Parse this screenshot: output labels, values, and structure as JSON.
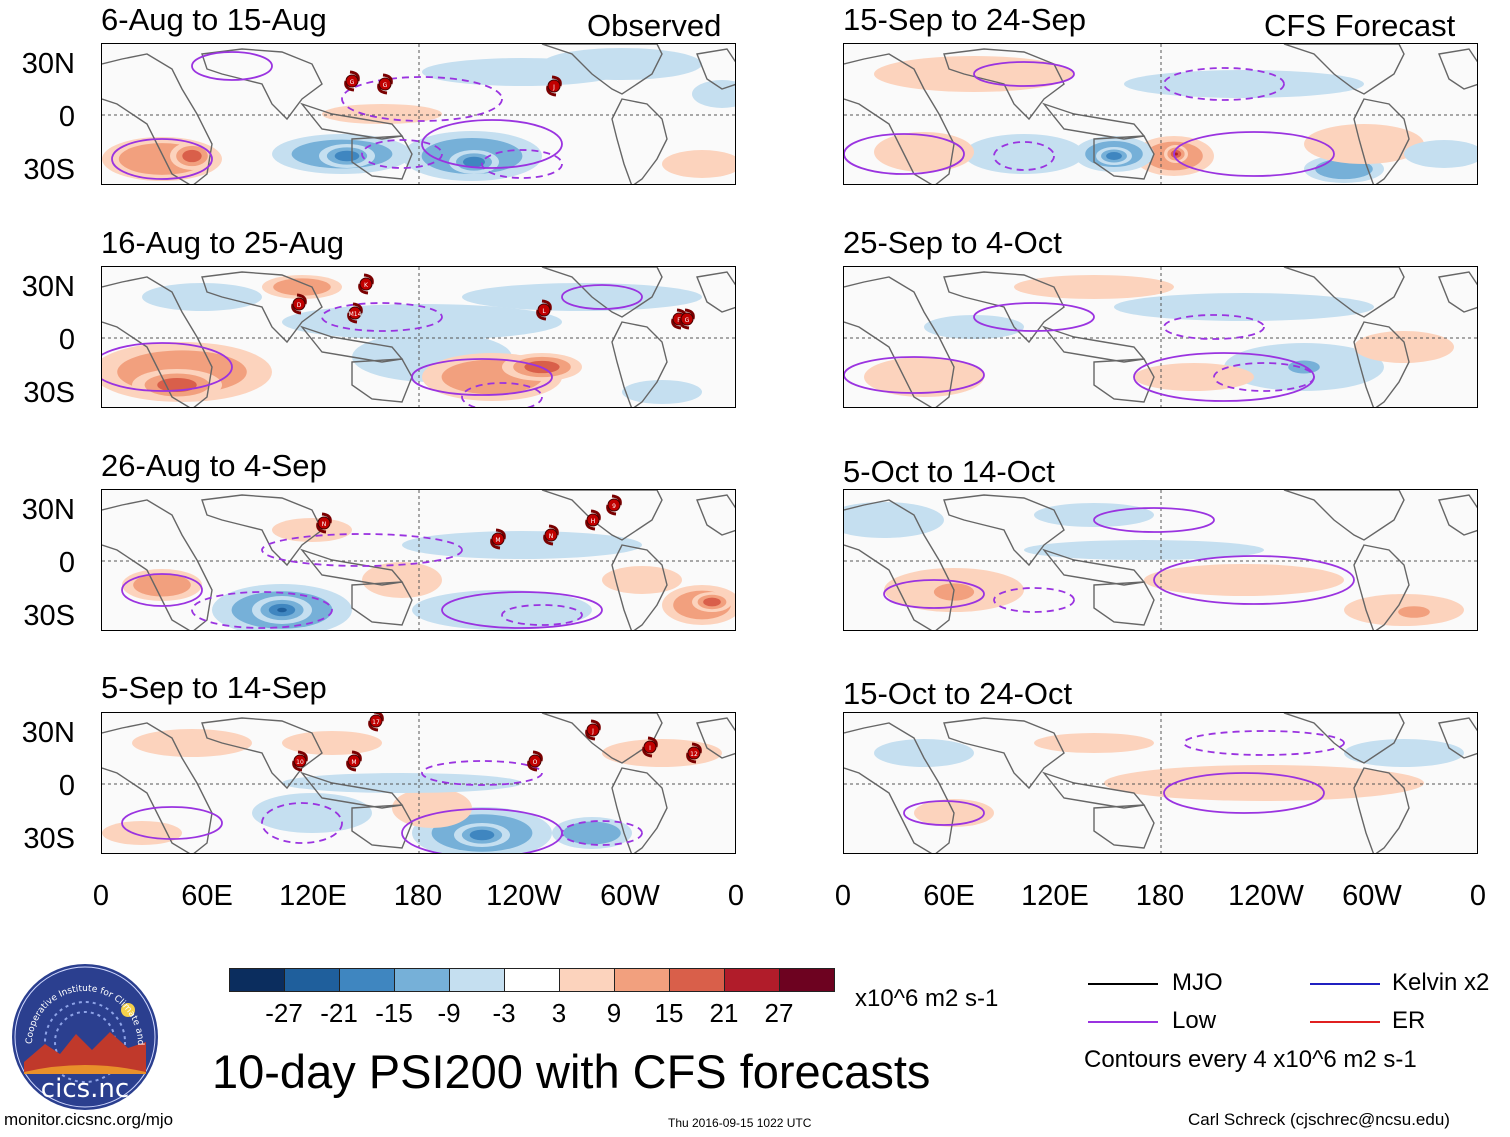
{
  "left_header": "Observed",
  "right_header": "CFS Forecast",
  "panels_left": [
    {
      "title": "6-Aug to 15-Aug"
    },
    {
      "title": "16-Aug to 25-Aug"
    },
    {
      "title": "26-Aug to 4-Sep"
    },
    {
      "title": "5-Sep to 14-Sep"
    }
  ],
  "panels_right": [
    {
      "title": "15-Sep to 24-Sep"
    },
    {
      "title": "25-Sep to 4-Oct"
    },
    {
      "title": "5-Oct to 14-Oct"
    },
    {
      "title": "15-Oct to 24-Oct"
    }
  ],
  "lat_labels": [
    "30N",
    "0",
    "30S"
  ],
  "lon_labels": [
    "0",
    "60E",
    "120E",
    "180",
    "120W",
    "60W",
    "0"
  ],
  "colorbar": {
    "colors": [
      "#0b2d5e",
      "#1f5f9c",
      "#3f86c0",
      "#76b0d8",
      "#c5dff0",
      "#ffffff",
      "#fcd3bd",
      "#f2a07e",
      "#d95f4a",
      "#b11c2a",
      "#6d0220"
    ],
    "labels": [
      "-27",
      "-21",
      "-15",
      "-9",
      "-3",
      "3",
      "9",
      "15",
      "21",
      "27"
    ],
    "units": "x10^6 m2 s-1"
  },
  "main_title": "10-day PSI200 with CFS forecasts",
  "legend": {
    "mjo": {
      "label": "MJO",
      "color": "#000000"
    },
    "low": {
      "label": "Low",
      "color": "#9a33e0"
    },
    "kelvin": {
      "label": "Kelvin x2",
      "color": "#2020c0"
    },
    "er": {
      "label": "ER",
      "color": "#e02020"
    },
    "contour_note": "Contours every 4 x10^6 m2 s-1"
  },
  "logo": {
    "arc_text": "Cooperative Institute for Climate and Satellites",
    "name": "cics.nc"
  },
  "footer": {
    "url": "monitor.cicsnc.org/mjo",
    "timestamp": "Thu 2016-09-15 1022 UTC",
    "author": "Carl Schreck (cjschrec@ncsu.edu)"
  },
  "storms": {
    "p0": [
      "G",
      "G",
      "J"
    ],
    "p1": [
      "K",
      "D",
      "M14",
      "L",
      "F",
      "G"
    ],
    "p2": [
      "N",
      "M",
      "N",
      "H",
      "9"
    ],
    "p3": [
      "17",
      "10",
      "M",
      "O",
      "J",
      "I",
      "12"
    ]
  }
}
